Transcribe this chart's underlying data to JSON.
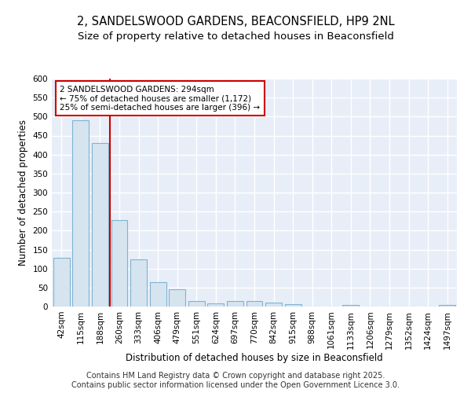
{
  "title": "2, SANDELSWOOD GARDENS, BEACONSFIELD, HP9 2NL",
  "subtitle": "Size of property relative to detached houses in Beaconsfield",
  "xlabel": "Distribution of detached houses by size in Beaconsfield",
  "ylabel": "Number of detached properties",
  "bar_color": "#d6e4f0",
  "bar_edge_color": "#7fb3d3",
  "plot_bg_color": "#e8eef8",
  "fig_bg_color": "#ffffff",
  "grid_color": "#ffffff",
  "vline_color": "#cc0000",
  "annotation_text": "2 SANDELSWOOD GARDENS: 294sqm\n← 75% of detached houses are smaller (1,172)\n25% of semi-detached houses are larger (396) →",
  "annotation_box_color": "#ffffff",
  "annotation_box_edge": "#cc0000",
  "categories": [
    "42sqm",
    "115sqm",
    "188sqm",
    "260sqm",
    "333sqm",
    "406sqm",
    "479sqm",
    "551sqm",
    "624sqm",
    "697sqm",
    "770sqm",
    "842sqm",
    "915sqm",
    "988sqm",
    "1061sqm",
    "1133sqm",
    "1206sqm",
    "1279sqm",
    "1352sqm",
    "1424sqm",
    "1497sqm"
  ],
  "values": [
    128,
    490,
    430,
    228,
    124,
    65,
    46,
    14,
    8,
    14,
    14,
    10,
    6,
    0,
    0,
    5,
    0,
    0,
    0,
    0,
    4
  ],
  "ylim": [
    0,
    600
  ],
  "yticks": [
    0,
    50,
    100,
    150,
    200,
    250,
    300,
    350,
    400,
    450,
    500,
    550,
    600
  ],
  "footer_text": "Contains HM Land Registry data © Crown copyright and database right 2025.\nContains public sector information licensed under the Open Government Licence 3.0.",
  "title_fontsize": 10.5,
  "subtitle_fontsize": 9.5,
  "tick_fontsize": 7.5,
  "label_fontsize": 8.5,
  "footer_fontsize": 7,
  "vline_idx": 3
}
